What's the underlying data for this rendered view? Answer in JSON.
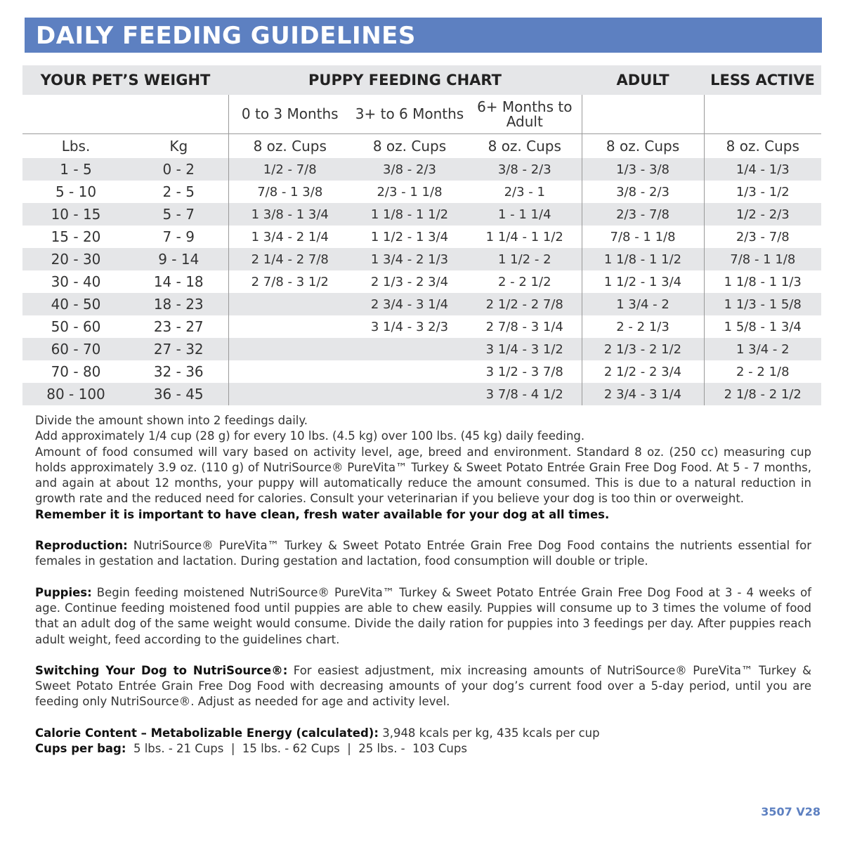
{
  "title": "DAILY FEEDING GUIDELINES",
  "table": {
    "headers": {
      "weight": "YOUR PET’S WEIGHT",
      "puppy": "PUPPY FEEDING CHART",
      "adult": "ADULT",
      "less_active": "LESS ACTIVE"
    },
    "puppy_ages": [
      "0 to 3 Months",
      "3+ to 6 Months",
      "6+ Months to Adult"
    ],
    "units": {
      "lbs": "Lbs.",
      "kg": "Kg",
      "cups": "8 oz. Cups"
    },
    "rows": [
      [
        "1 - 5",
        "0 - 2",
        "1/2 - 7/8",
        "3/8 - 2/3",
        "3/8 - 2/3",
        "1/3 - 3/8",
        "1/4 - 1/3"
      ],
      [
        "5 - 10",
        "2 - 5",
        "7/8 - 1 3/8",
        "2/3 - 1 1/8",
        "2/3 - 1",
        "3/8 - 2/3",
        "1/3 - 1/2"
      ],
      [
        "10 - 15",
        "5 - 7",
        "1 3/8 - 1 3/4",
        "1 1/8 - 1 1/2",
        "1 - 1 1/4",
        "2/3 - 7/8",
        "1/2 - 2/3"
      ],
      [
        "15 - 20",
        "7 - 9",
        "1 3/4 - 2 1/4",
        "1 1/2 - 1 3/4",
        "1 1/4 - 1 1/2",
        "7/8 - 1 1/8",
        "2/3 - 7/8"
      ],
      [
        "20 - 30",
        "9 - 14",
        "2 1/4 - 2 7/8",
        "1 3/4 - 2 1/3",
        "1 1/2 - 2",
        "1 1/8 - 1 1/2",
        "7/8 - 1 1/8"
      ],
      [
        "30 - 40",
        "14 - 18",
        "2 7/8 - 3 1/2",
        "2 1/3 - 2 3/4",
        "2 - 2 1/2",
        "1 1/2 - 1 3/4",
        "1 1/8 - 1 1/3"
      ],
      [
        "40 - 50",
        "18 - 23",
        "",
        "2 3/4 - 3 1/4",
        "2 1/2 - 2 7/8",
        "1 3/4 - 2",
        "1 1/3 - 1 5/8"
      ],
      [
        "50 - 60",
        "23 - 27",
        "",
        "3 1/4 - 3 2/3",
        "2 7/8 - 3 1/4",
        "2 - 2 1/3",
        "1 5/8 - 1 3/4"
      ],
      [
        "60 - 70",
        "27 - 32",
        "",
        "",
        "3 1/4 - 3 1/2",
        "2 1/3 - 2 1/2",
        "1 3/4 - 2"
      ],
      [
        "70 - 80",
        "32 - 36",
        "",
        "",
        "3 1/2 - 3 7/8",
        "2 1/2 - 2 3/4",
        "2 - 2 1/8"
      ],
      [
        "80 - 100",
        "36 - 45",
        "",
        "",
        "3 7/8 - 4 1/2",
        "2 3/4 - 3 1/4",
        "2 1/8 - 2 1/2"
      ]
    ]
  },
  "notes": {
    "p1": "Divide the amount shown into 2 feedings daily.",
    "p2": "Add approximately 1/4 cup (28 g) for every 10 lbs. (4.5 kg) over 100 lbs. (45 kg) daily feeding.",
    "p3": "Amount of food consumed will vary based on activity level, age, breed and environment. Standard 8 oz. (250 cc) measuring cup holds approximately 3.9 oz. (110 g)  of NutriSource® PureVita™ Turkey & Sweet Potato Entrée Grain Free Dog Food. At 5 - 7 months, and again at about 12 months, your puppy will automatically reduce the amount consumed. This is due to a natural reduction in growth rate and the reduced need for calories. Consult your veterinarian if you believe your dog is too thin or overweight.",
    "water": "Remember it is important to have clean, fresh water available for your dog at all times.",
    "repro_label": "Reproduction:",
    "repro": " NutriSource® PureVita™ Turkey & Sweet Potato Entrée Grain Free Dog Food contains the nutrients essential for females in gestation and lactation. During gestation and lactation, food consumption will double or triple.",
    "puppies_label": "Puppies:",
    "puppies": " Begin feeding moistened NutriSource® PureVita™ Turkey & Sweet Potato Entrée Grain Free Dog Food at 3 - 4 weeks of age. Continue feeding moistened food until puppies are able to chew easily. Puppies will consume up to 3 times the volume of food that an adult dog of the same weight would consume. Divide the daily ration for puppies into 3 feedings per day. After puppies reach adult weight, feed according to the guidelines chart.",
    "switch_label": "Switching Your Dog to NutriSource®:",
    "switch": " For easiest adjustment, mix increasing amounts of NutriSource® PureVita™ Turkey & Sweet Potato Entrée Grain Free Dog Food with decreasing amounts of your dog’s current food over a 5-day period, until you are feeding only NutriSource®. Adjust as needed for age and activity level.",
    "calorie_label": "Calorie Content – Metabolizable Energy (calculated):",
    "calorie": " 3,948 kcals per kg, 435 kcals per cup",
    "cups_label": "Cups per bag:",
    "cups": "  5 lbs. - 21 Cups  |  15 lbs. - 62 Cups  |  25 lbs. -  103 Cups"
  },
  "code": "3507 V28"
}
